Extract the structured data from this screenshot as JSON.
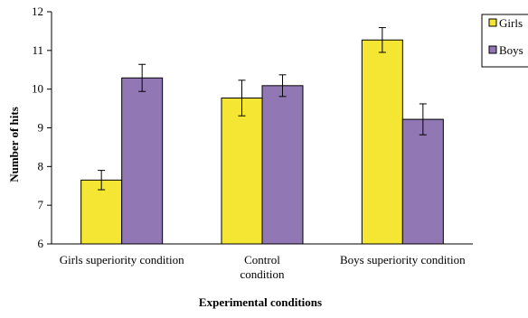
{
  "chart_data": {
    "type": "bar",
    "categories": [
      [
        "Girls superiority condition"
      ],
      [
        "Control",
        "condition"
      ],
      [
        "Boys superiority condition"
      ]
    ],
    "series": [
      {
        "name": "Girls",
        "color": "#f5e634",
        "values": [
          7.65,
          9.77,
          11.27
        ],
        "errors": [
          0.25,
          0.46,
          0.32
        ]
      },
      {
        "name": "Boys",
        "color": "#9178b4",
        "values": [
          10.29,
          10.09,
          9.22
        ],
        "errors": [
          0.35,
          0.28,
          0.4
        ]
      }
    ],
    "xlabel": "Experimental conditions",
    "ylabel": "Number of hits",
    "ylim": [
      6,
      12
    ],
    "yticks": [
      "6",
      "7",
      "8",
      "9",
      "10",
      "11",
      "12"
    ],
    "legend_position": "top-right",
    "grid": false
  }
}
